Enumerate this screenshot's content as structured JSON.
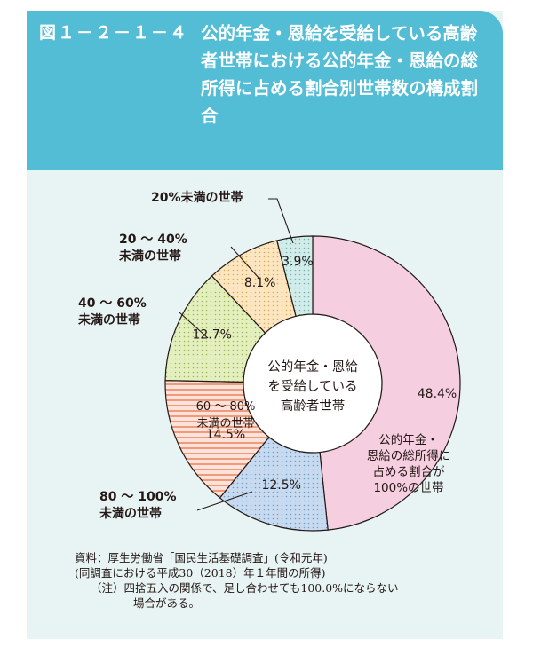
{
  "figure": {
    "number": "図１－２－１－４",
    "title": "公的年金・恩給を受給している高齢者世帯における公的年金・恩給の総所得に占める割合別世帯数の構成割合"
  },
  "chart_data": {
    "type": "donut",
    "center_label": [
      "公的年金・恩給",
      "を受給している",
      "高齢者世帯"
    ],
    "slices": [
      {
        "label": [
          "公的年金・",
          "恩給の総所得に",
          "占める割合が",
          "100%の世帯"
        ],
        "value": 48.4,
        "display": "48.4%",
        "color": "#f5cee0",
        "pattern": "solid"
      },
      {
        "label": [
          "80 ～ 100%",
          "未満の世帯"
        ],
        "value": 12.5,
        "display": "12.5%",
        "color": "#c7daf0",
        "pattern": "dots"
      },
      {
        "label": [
          "60 ～ 80%",
          "未満の世帯"
        ],
        "value": 14.5,
        "display": "14.5%",
        "color": "#fbe3dc",
        "pattern": "stripes"
      },
      {
        "label": [
          "40 ～ 60%",
          "未満の世帯"
        ],
        "value": 12.7,
        "display": "12.7%",
        "color": "#e4efbf",
        "pattern": "dots"
      },
      {
        "label": [
          "20 ～ 40%",
          "未満の世帯"
        ],
        "value": 8.1,
        "display": "8.1%",
        "color": "#fce6c2",
        "pattern": "dots"
      },
      {
        "label": [
          "20%未満の世帯"
        ],
        "value": 3.9,
        "display": "3.9%",
        "color": "#d2ecea",
        "pattern": "dots"
      }
    ]
  },
  "source": {
    "line1": "資料：厚生労働省「国民生活基礎調査」(令和元年)",
    "line2": "(同調査における平成30（2018）年１年間の所得)",
    "note1": "（注）四捨五入の関係で、足し合わせても100.0%にならない",
    "note2": "場合がある。"
  }
}
